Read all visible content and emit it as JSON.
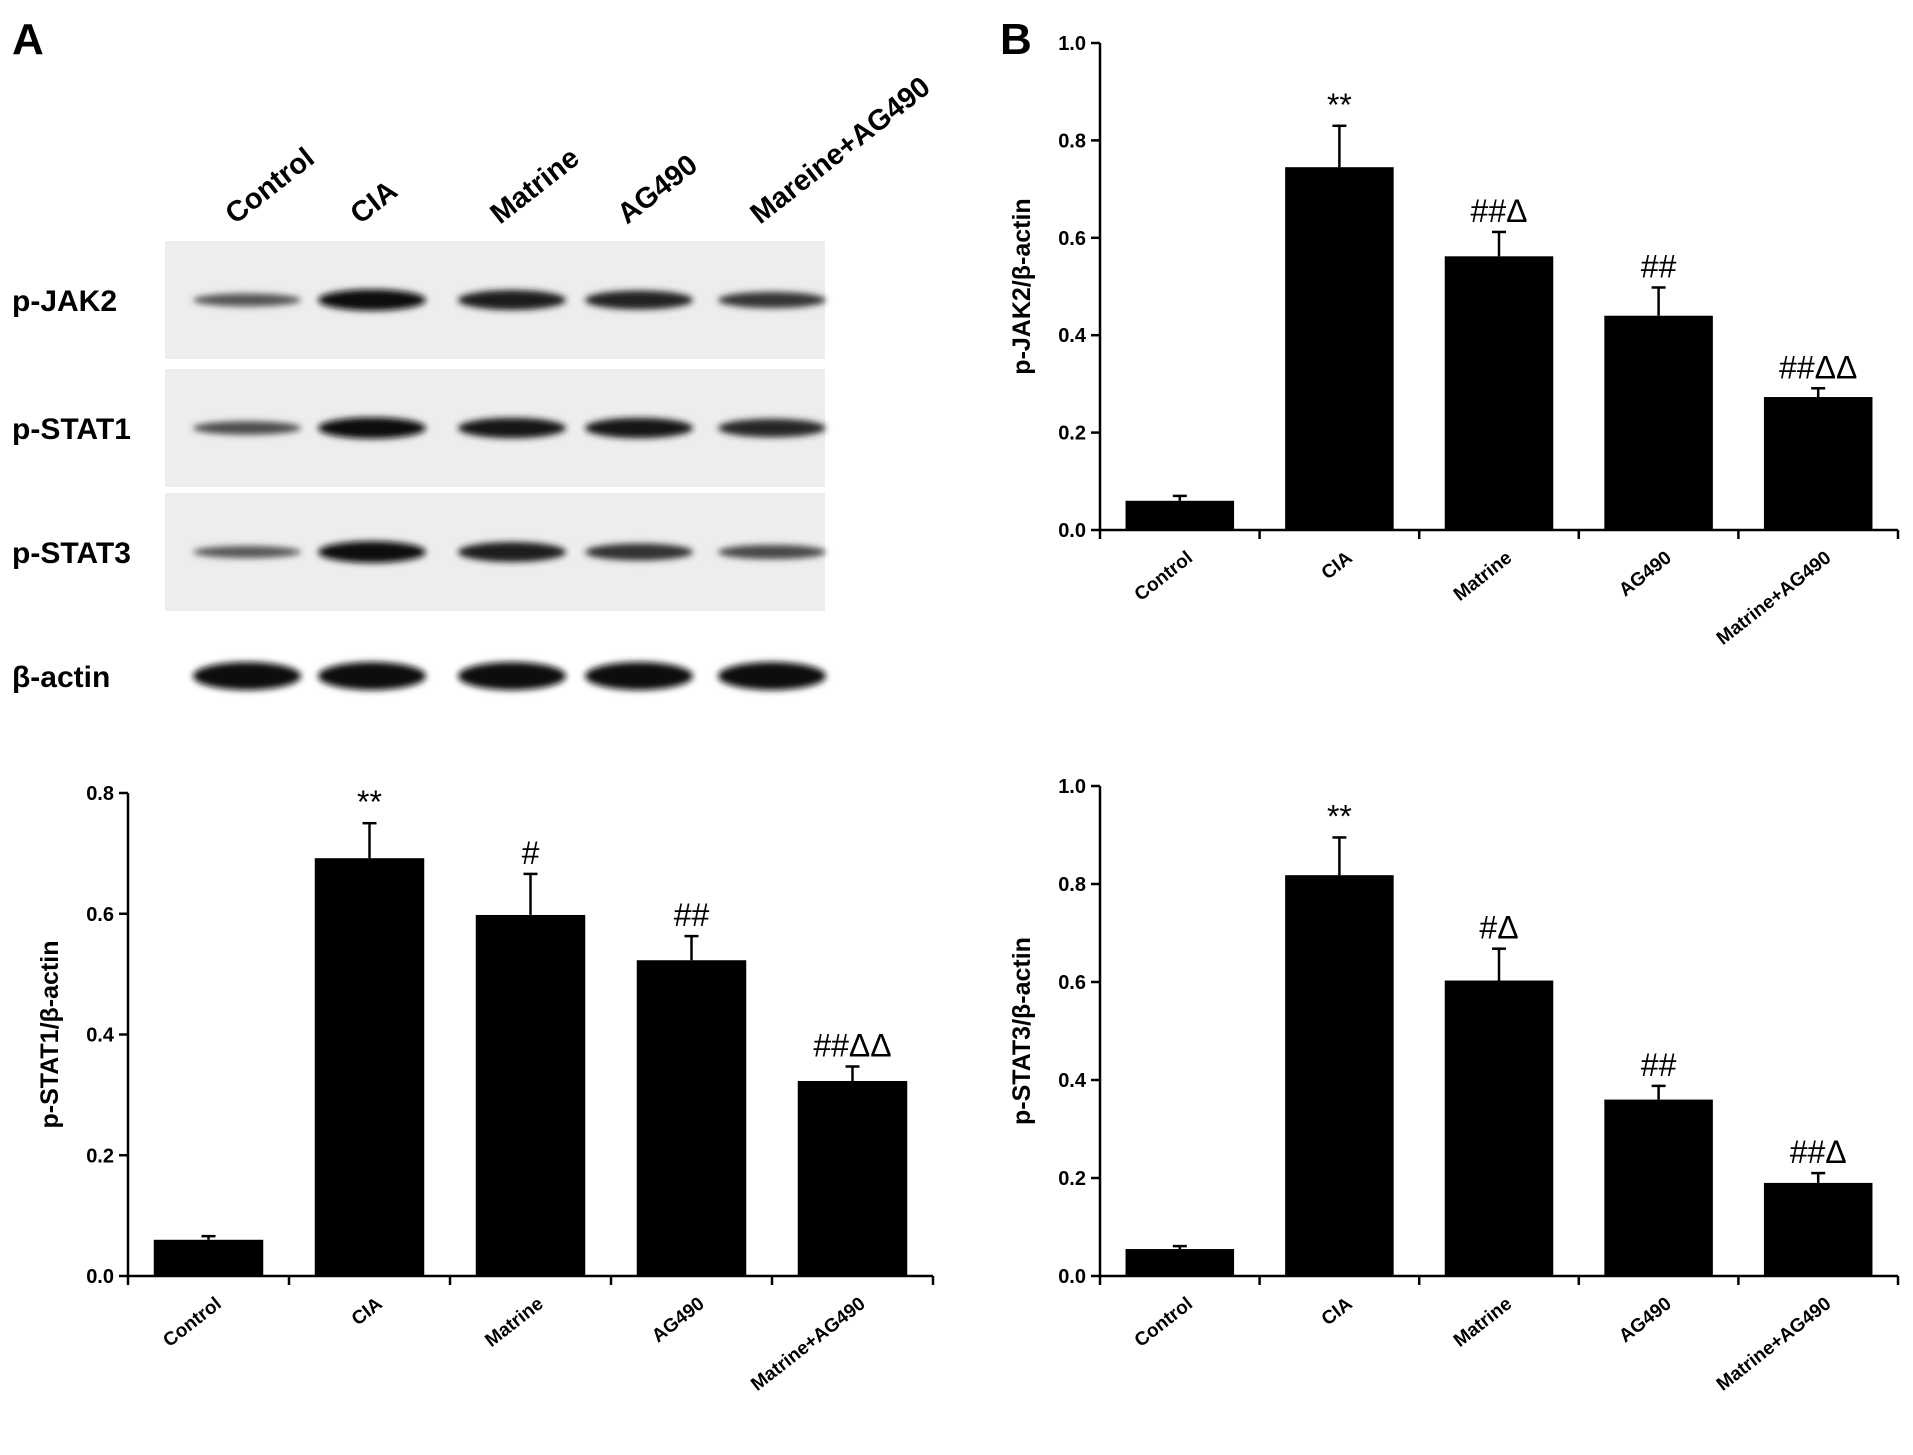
{
  "panels": {
    "A": "A",
    "B": "B"
  },
  "blot": {
    "lanes": [
      "Control",
      "CIA",
      "Matrine",
      "AG490",
      "Mareine+AG490"
    ],
    "rows": [
      {
        "label": "p-JAK2",
        "intensity": [
          0.35,
          0.95,
          0.85,
          0.78,
          0.6
        ]
      },
      {
        "label": "p-STAT1",
        "intensity": [
          0.4,
          0.95,
          0.88,
          0.88,
          0.75
        ]
      },
      {
        "label": "p-STAT3",
        "intensity": [
          0.3,
          0.98,
          0.85,
          0.65,
          0.45
        ]
      },
      {
        "label": "β-actin",
        "intensity": [
          1.0,
          0.95,
          0.95,
          0.95,
          0.95
        ]
      }
    ]
  },
  "chart_data": [
    {
      "type": "bar",
      "title": "",
      "ylabel": "p-JAK2/β-actin",
      "xlabel": "",
      "ylim": [
        0,
        1.0
      ],
      "yticks": [
        "0.0",
        "0.2",
        "0.4",
        "0.6",
        "0.8",
        "1.0"
      ],
      "categories": [
        "Control",
        "CIA",
        "Matrine",
        "AG490",
        "Matrine+AG490"
      ],
      "values": [
        0.06,
        0.745,
        0.562,
        0.44,
        0.273
      ],
      "errors": [
        0.01,
        0.085,
        0.05,
        0.058,
        0.018
      ],
      "annotations": [
        "",
        "**",
        "##Δ",
        "##",
        "##ΔΔ"
      ]
    },
    {
      "type": "bar",
      "title": "",
      "ylabel": "p-STAT1/β-actin",
      "xlabel": "",
      "ylim": [
        0,
        0.8
      ],
      "yticks": [
        "0.0",
        "0.2",
        "0.4",
        "0.6",
        "0.8"
      ],
      "categories": [
        "Control",
        "CIA",
        "Matrine",
        "AG490",
        "Matrine+AG490"
      ],
      "values": [
        0.06,
        0.692,
        0.598,
        0.523,
        0.323
      ],
      "errors": [
        0.006,
        0.058,
        0.068,
        0.04,
        0.024
      ],
      "annotations": [
        "",
        "**",
        "#",
        "##",
        "##ΔΔ"
      ]
    },
    {
      "type": "bar",
      "title": "",
      "ylabel": "p-STAT3/β-actin",
      "xlabel": "",
      "ylim": [
        0,
        1.0
      ],
      "yticks": [
        "0.0",
        "0.2",
        "0.4",
        "0.6",
        "0.8",
        "1.0"
      ],
      "categories": [
        "Control",
        "CIA",
        "Matrine",
        "AG490",
        "Matrine+AG490"
      ],
      "values": [
        0.055,
        0.818,
        0.603,
        0.36,
        0.19
      ],
      "errors": [
        0.006,
        0.077,
        0.065,
        0.028,
        0.02
      ],
      "annotations": [
        "",
        "**",
        "#Δ",
        "##",
        "##Δ"
      ]
    }
  ]
}
